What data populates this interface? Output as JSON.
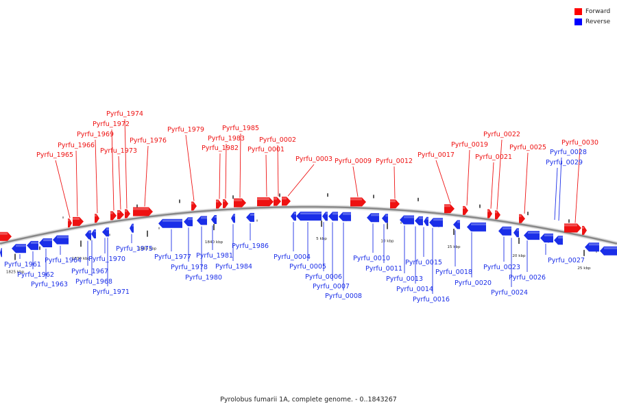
{
  "caption": "Pyrolobus fumarii 1A, complete genome. - 0..1843267",
  "legend": [
    {
      "label": "Forward",
      "color": "#ff0000"
    },
    {
      "label": "Reverse",
      "color": "#0000ff"
    }
  ],
  "colors": {
    "forward": "#ee1111",
    "reverse": "#1a2ee8",
    "backbone": "#888888"
  },
  "scale_ticks": [
    "1825 kbp",
    "1830 kbp",
    "1835 kbp",
    "1840 kbp",
    "5 kbp",
    "10 kbp",
    "15 kbp",
    "20 kbp",
    "25 kbp"
  ],
  "forward_genes": [
    "Pyrfu_1965",
    "Pyrfu_1966",
    "Pyrfu_1969",
    "Pyrfu_1972",
    "Pyrfu_1973",
    "Pyrfu_1974",
    "Pyrfu_1976",
    "Pyrfu_1979",
    "Pyrfu_1982",
    "Pyrfu_1983",
    "Pyrfu_1985",
    "Pyrfu_0001",
    "Pyrfu_0002",
    "Pyrfu_0003",
    "Pyrfu_0009",
    "Pyrfu_0012",
    "Pyrfu_0017",
    "Pyrfu_0019",
    "Pyrfu_0021",
    "Pyrfu_0022",
    "Pyrfu_0025",
    "Pyrfu_0030"
  ],
  "reverse_genes": [
    "Pyrfu_1961",
    "Pyrfu_1962",
    "Pyrfu_1963",
    "Pyrfu_1964",
    "Pyrfu_1967",
    "Pyrfu_1968",
    "Pyrfu_1970",
    "Pyrfu_1971",
    "Pyrfu_1975",
    "Pyrfu_1977",
    "Pyrfu_1978",
    "Pyrfu_1980",
    "Pyrfu_1981",
    "Pyrfu_1984",
    "Pyrfu_1986",
    "Pyrfu_0004",
    "Pyrfu_0005",
    "Pyrfu_0006",
    "Pyrfu_0007",
    "Pyrfu_0008",
    "Pyrfu_0010",
    "Pyrfu_0011",
    "Pyrfu_0013",
    "Pyrfu_0014",
    "Pyrfu_0015",
    "Pyrfu_0016",
    "Pyrfu_0018",
    "Pyrfu_0020",
    "Pyrfu_0023",
    "Pyrfu_0024",
    "Pyrfu_0026",
    "Pyrfu_0027",
    "Pyrfu_0028",
    "Pyrfu_0029"
  ]
}
